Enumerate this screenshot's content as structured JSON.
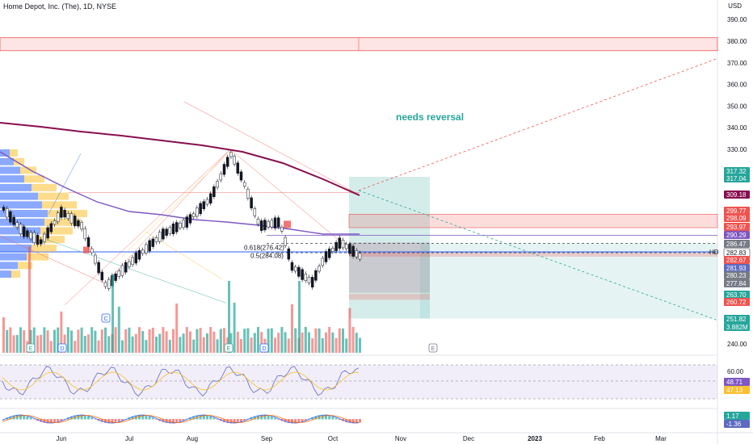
{
  "header": {
    "title": "Home Depot, Inc. (The), 1D, NYSE"
  },
  "currency": "USD",
  "annotation": {
    "text": "needs reversal"
  },
  "price_axis": {
    "ticks": [
      "390.00",
      "380.00",
      "370.00",
      "360.00",
      "350.00",
      "340.00",
      "330.00",
      "240.00"
    ]
  },
  "x_axis": {
    "labels": [
      "Jun",
      "Jul",
      "Aug",
      "Sep",
      "Oct",
      "Nov",
      "Dec",
      "2023",
      "Feb",
      "Mar"
    ]
  },
  "price_tags": [
    {
      "text": "317.32",
      "color": "#26a69a"
    },
    {
      "text": "317.04",
      "color": "#26a69a"
    },
    {
      "text": "309.18",
      "color": "#880e4f"
    },
    {
      "text": "299.77",
      "color": "#ef5350"
    },
    {
      "text": "298.09",
      "color": "#ef5350"
    },
    {
      "text": "293.97",
      "color": "#ef5350"
    },
    {
      "text": "290.29",
      "color": "#7e57c2"
    },
    {
      "text": "286.47",
      "color": "#787b86"
    },
    {
      "text": "282.83",
      "color": "#ffffff"
    },
    {
      "text": "282.67",
      "color": "#ef5350"
    },
    {
      "text": "281.93",
      "color": "#5c6bc0"
    },
    {
      "text": "280.23",
      "color": "#787b86"
    },
    {
      "text": "277.84",
      "color": "#787b86"
    },
    {
      "text": "263.70",
      "color": "#26a69a"
    },
    {
      "text": "260.72",
      "color": "#ef5350"
    },
    {
      "text": "251.82",
      "color": "#26a69a"
    },
    {
      "text": "3.882M",
      "color": "#26a69a"
    }
  ],
  "symbol_label": "HD",
  "fib_labels": [
    "0.618(276.42)",
    "0.5(284.08)"
  ],
  "rsi": {
    "levels": [
      "60.00"
    ],
    "tags": [
      {
        "text": "48.71",
        "color": "#7e57c2"
      },
      {
        "text": "47.13",
        "color": "#fbc02d"
      }
    ]
  },
  "macd": {
    "tags": [
      {
        "text": "1.17",
        "color": "#26a69a"
      },
      {
        "text": "-1.36",
        "color": "#5c6bc0"
      }
    ]
  },
  "events": [
    {
      "label": "E",
      "color": "#26a69a"
    },
    {
      "label": "D",
      "color": "#2962ff"
    },
    {
      "label": "C",
      "color": "#2962ff"
    },
    {
      "label": "E",
      "color": "#26a69a"
    },
    {
      "label": "D",
      "color": "#2962ff"
    },
    {
      "label": "E",
      "color": "#787b86"
    }
  ],
  "colors": {
    "up": "#26a69a",
    "down": "#ef5350",
    "ma200": "#880e4f",
    "ma50": "#7e57c2"
  }
}
